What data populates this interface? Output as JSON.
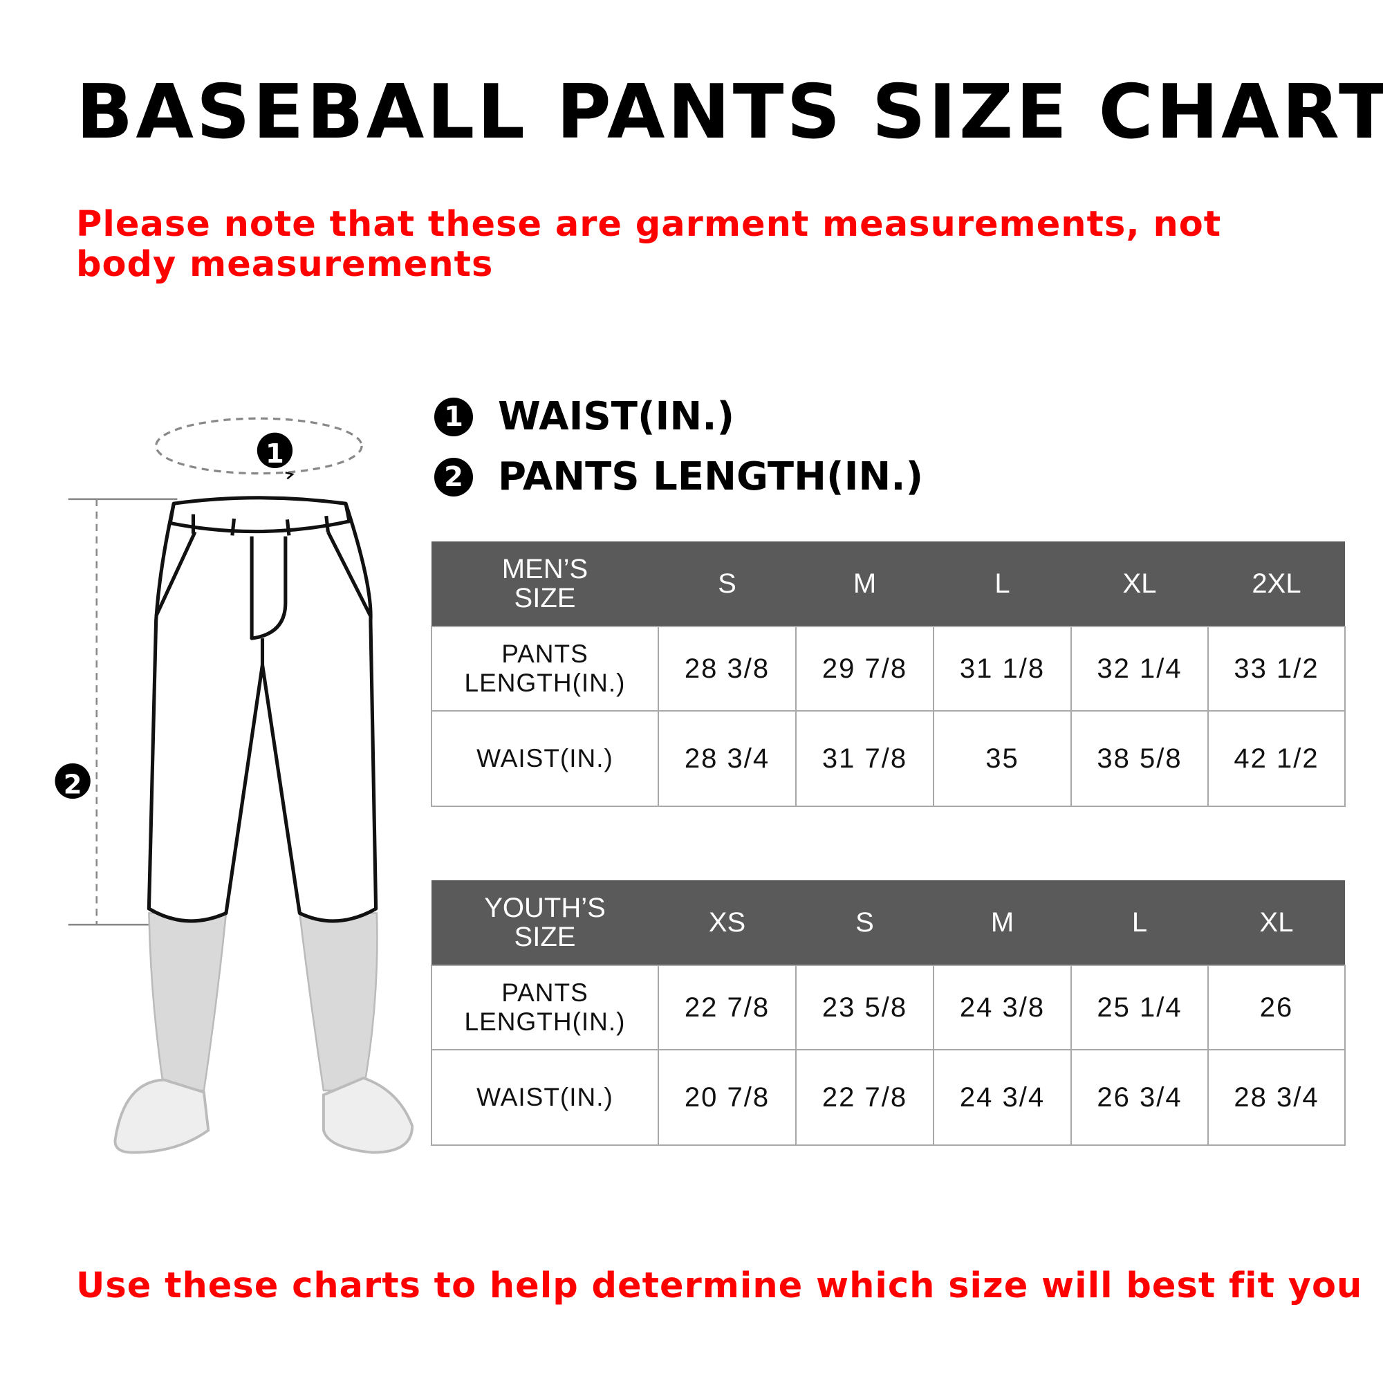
{
  "title": "BASEBALL PANTS SIZE CHART",
  "note": "Please note that these are garment measurements, not body measurements",
  "legend": [
    {
      "number": "1",
      "label": "WAIST(IN.)"
    },
    {
      "number": "2",
      "label": "PANTS LENGTH(IN.)"
    }
  ],
  "illustration": {
    "marker_1": "1",
    "marker_2": "2"
  },
  "mens_table": {
    "corner": "MEN’S SIZE",
    "sizes": [
      "S",
      "M",
      "L",
      "XL",
      "2XL"
    ],
    "rows": [
      {
        "label": "PANTS LENGTH(IN.)",
        "values": [
          "28 3/8",
          "29 7/8",
          "31 1/8",
          "32 1/4",
          "33 1/2"
        ]
      },
      {
        "label": "WAIST(IN.)",
        "values": [
          "28 3/4",
          "31 7/8",
          "35",
          "38 5/8",
          "42 1/2"
        ]
      }
    ]
  },
  "youth_table": {
    "corner": "YOUTH’S SIZE",
    "sizes": [
      "XS",
      "S",
      "M",
      "L",
      "XL"
    ],
    "rows": [
      {
        "label": "PANTS LENGTH(IN.)",
        "values": [
          "22 7/8",
          "23 5/8",
          "24 3/8",
          "25 1/4",
          "26"
        ]
      },
      {
        "label": "WAIST(IN.)",
        "values": [
          "20 7/8",
          "22 7/8",
          "24 3/4",
          "26 3/4",
          "28 3/4"
        ]
      }
    ]
  },
  "footer": "Use these charts to help determine which size will best fit you",
  "colors": {
    "accent_red": "#ff0000",
    "header_gray": "#5a5a5a",
    "border_gray": "#a8a8a8"
  }
}
